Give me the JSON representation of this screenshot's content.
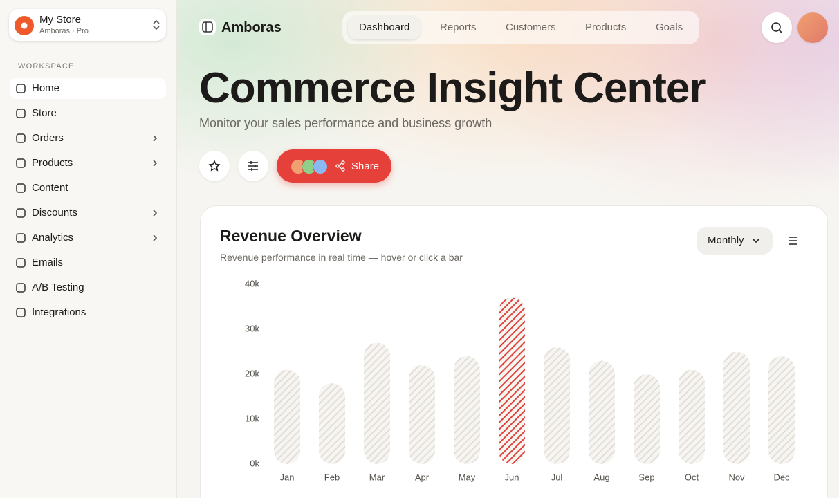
{
  "sidebar": {
    "store": {
      "name": "My Store",
      "plan": "Amboras · Pro"
    },
    "section": "WORKSPACE",
    "items": [
      "Home",
      "Store",
      "Orders",
      "Products",
      "Content",
      "Discounts",
      "Analytics",
      "Emails",
      "A/B Testing",
      "Integrations"
    ]
  },
  "nav": {
    "brand": "Amboras",
    "tabs": [
      "Dashboard",
      "Reports",
      "Customers",
      "Products",
      "Goals"
    ]
  },
  "header": {
    "title": "Commerce Insight Center",
    "subtitle": "Monitor your sales performance and business growth",
    "share": "Share"
  },
  "card": {
    "title": "Revenue Overview",
    "subtitle": "Revenue performance in real time — hover or click a bar",
    "period": "Monthly"
  },
  "chart_data": {
    "type": "bar",
    "categories": [
      "Jan",
      "Feb",
      "Mar",
      "Apr",
      "May",
      "Jun",
      "Jul",
      "Aug",
      "Sep",
      "Oct",
      "Nov",
      "Dec"
    ],
    "values": [
      21000,
      18000,
      27000,
      22000,
      24000,
      37000,
      26000,
      23000,
      20000,
      21000,
      25000,
      24000
    ],
    "colors": [
      "#e2ded7",
      "#e2ded7",
      "#e2ded7",
      "#e2ded7",
      "#e2ded7",
      "#e0413a",
      "#e2ded7",
      "#e2ded7",
      "#e2ded7",
      "#e2ded7",
      "#e2ded7",
      "#e2ded7"
    ],
    "ylim": [
      0,
      40000
    ],
    "yticks": [
      {
        "value": 0,
        "label": "0k"
      },
      {
        "value": 10000,
        "label": "10k"
      },
      {
        "value": 20000,
        "label": "20k"
      },
      {
        "value": 30000,
        "label": "30k"
      },
      {
        "value": 40000,
        "label": "40k"
      }
    ],
    "grid": false
  }
}
